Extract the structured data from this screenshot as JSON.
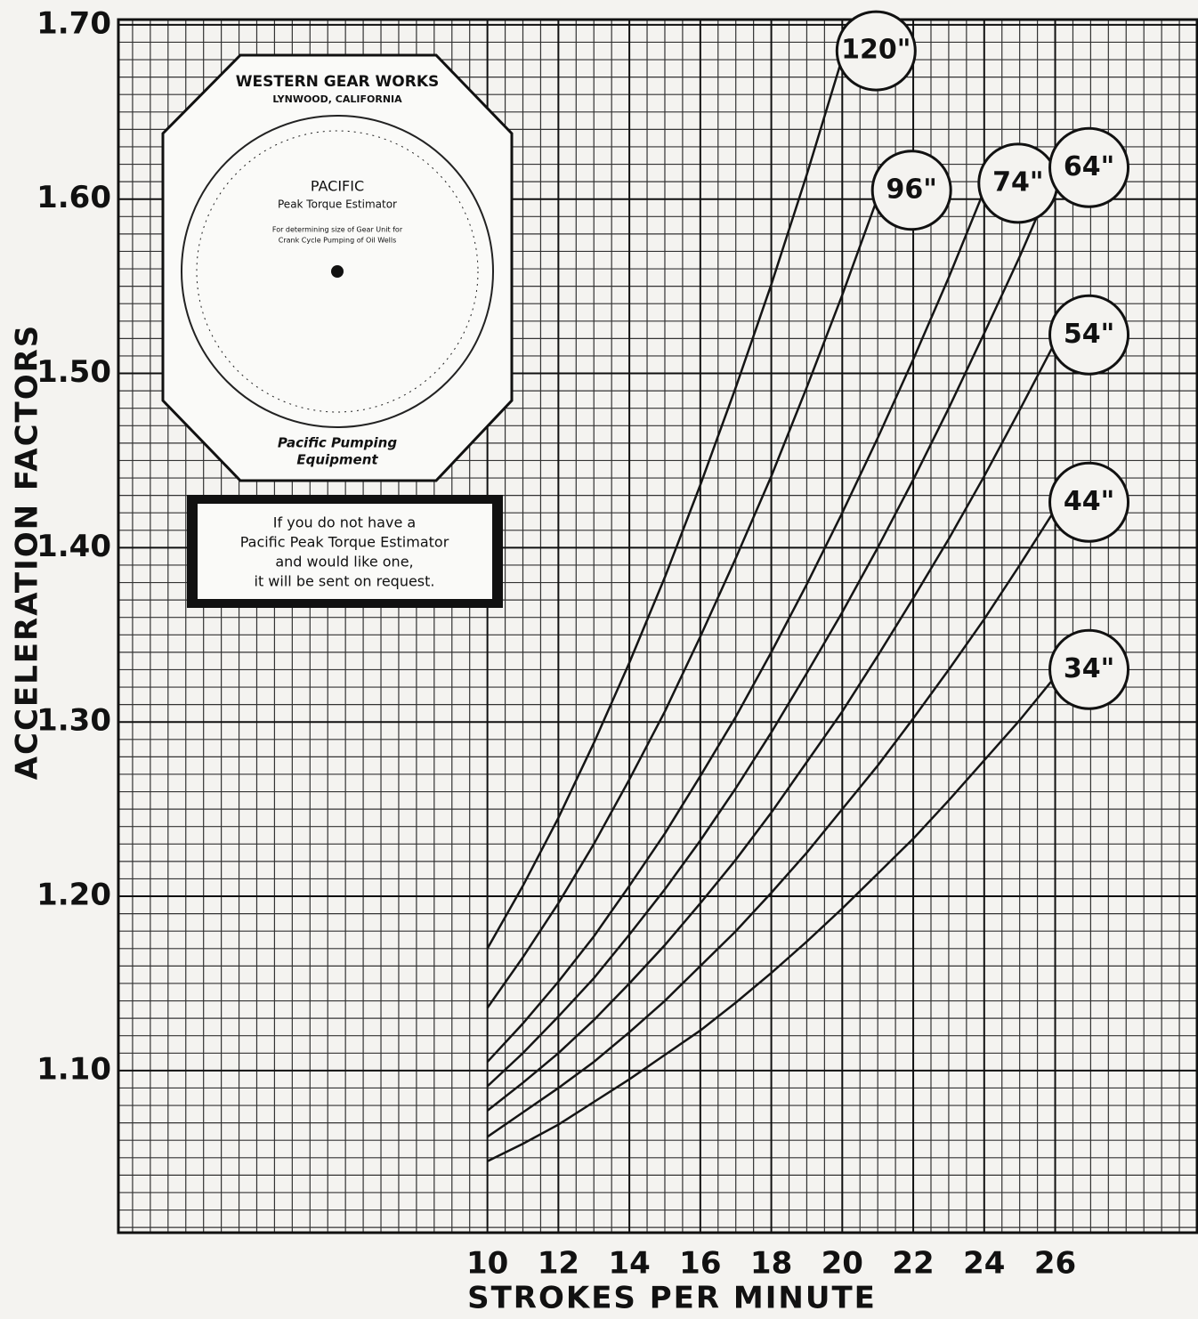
{
  "chart_data": {
    "type": "line",
    "x_label": "STROKES PER MINUTE",
    "y_label": "ACCELERATION FACTORS",
    "x": [
      10,
      11,
      12,
      13,
      14,
      15,
      16,
      17,
      18,
      19,
      20,
      21,
      22,
      23,
      24,
      25,
      26
    ],
    "xlim": [
      -0.4,
      30
    ],
    "xticks": [
      10,
      12,
      14,
      16,
      18,
      20,
      22,
      24,
      26
    ],
    "ylim": [
      1.007,
      1.703
    ],
    "yticks": [
      {
        "value": 1.1,
        "label": "1.10"
      },
      {
        "value": 1.2,
        "label": "1.20"
      },
      {
        "value": 1.3,
        "label": "1.30"
      },
      {
        "value": 1.4,
        "label": "1.40"
      },
      {
        "value": 1.5,
        "label": "1.50"
      },
      {
        "value": 1.6,
        "label": "1.60"
      },
      {
        "value": 1.7,
        "label": "1.70"
      }
    ],
    "grid": true,
    "color": "#151515",
    "series": [
      {
        "name": "120\"",
        "values": [
          1.17,
          1.206,
          1.245,
          1.288,
          1.334,
          1.383,
          1.436,
          1.492,
          1.551,
          1.614,
          1.681,
          null,
          null,
          null,
          null,
          null,
          null
        ]
      },
      {
        "name": "96\"",
        "values": [
          1.136,
          1.165,
          1.196,
          1.23,
          1.267,
          1.306,
          1.349,
          1.394,
          1.441,
          1.492,
          1.545,
          1.601,
          null,
          null,
          null,
          null,
          null
        ]
      },
      {
        "name": "74\"",
        "values": [
          1.105,
          1.127,
          1.151,
          1.177,
          1.206,
          1.236,
          1.269,
          1.303,
          1.34,
          1.379,
          1.42,
          1.463,
          1.508,
          1.555,
          1.605,
          null,
          null
        ]
      },
      {
        "name": "64\"",
        "values": [
          1.091,
          1.11,
          1.131,
          1.153,
          1.178,
          1.204,
          1.232,
          1.262,
          1.294,
          1.328,
          1.363,
          1.4,
          1.439,
          1.48,
          1.523,
          1.567,
          1.614
        ]
      },
      {
        "name": "54\"",
        "values": [
          1.077,
          1.093,
          1.11,
          1.129,
          1.15,
          1.172,
          1.196,
          1.221,
          1.248,
          1.277,
          1.306,
          1.338,
          1.371,
          1.405,
          1.441,
          1.479,
          1.518
        ]
      },
      {
        "name": "44\"",
        "values": [
          1.062,
          1.076,
          1.09,
          1.105,
          1.122,
          1.14,
          1.16,
          1.18,
          1.202,
          1.225,
          1.25,
          1.275,
          1.302,
          1.33,
          1.359,
          1.39,
          1.422
        ]
      },
      {
        "name": "34\"",
        "values": [
          1.048,
          1.058,
          1.069,
          1.082,
          1.095,
          1.109,
          1.123,
          1.139,
          1.156,
          1.174,
          1.193,
          1.213,
          1.233,
          1.255,
          1.278,
          1.301,
          1.326
        ]
      }
    ],
    "annotations": [
      "WESTERN GEAR WORKS",
      "LYNWOOD, CALIFORNIA",
      "PACIFIC",
      "Peak Torque Estimator",
      "For determining size of Gear Unit for",
      "Crank Cycle Pumping of Oil Wells",
      "Pacific Pumping",
      "Equipment",
      "If you do not have a",
      "Pacific Peak Torque Estimator",
      "and would like one,",
      "it will be sent on request."
    ]
  }
}
